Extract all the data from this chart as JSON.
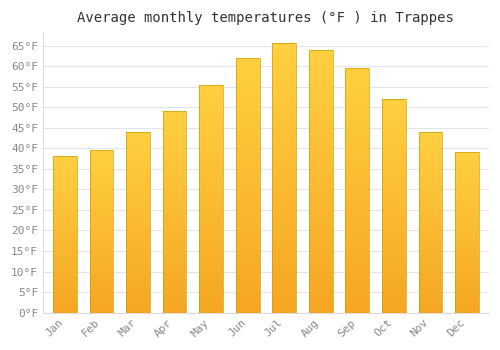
{
  "title": "Average monthly temperatures (°F ) in Trappes",
  "months": [
    "Jan",
    "Feb",
    "Mar",
    "Apr",
    "May",
    "Jun",
    "Jul",
    "Aug",
    "Sep",
    "Oct",
    "Nov",
    "Dec"
  ],
  "values": [
    38.0,
    39.5,
    44.0,
    49.0,
    55.5,
    62.0,
    65.5,
    64.0,
    59.5,
    52.0,
    44.0,
    39.0
  ],
  "bar_color_bottom": "#F5A623",
  "bar_color_top": "#FFD040",
  "bar_outline_color": "#C8A000",
  "ylim": [
    0,
    68
  ],
  "yticks": [
    0,
    5,
    10,
    15,
    20,
    25,
    30,
    35,
    40,
    45,
    50,
    55,
    60,
    65
  ],
  "ytick_labels": [
    "0°F",
    "5°F",
    "10°F",
    "15°F",
    "20°F",
    "25°F",
    "30°F",
    "35°F",
    "40°F",
    "45°F",
    "50°F",
    "55°F",
    "60°F",
    "65°F"
  ],
  "background_color": "#FFFFFF",
  "plot_bg_color": "#FFFFFF",
  "grid_color": "#E0E4EC",
  "title_fontsize": 10,
  "tick_fontsize": 8,
  "bar_width": 0.65,
  "font_family": "monospace",
  "tick_color": "#888888"
}
